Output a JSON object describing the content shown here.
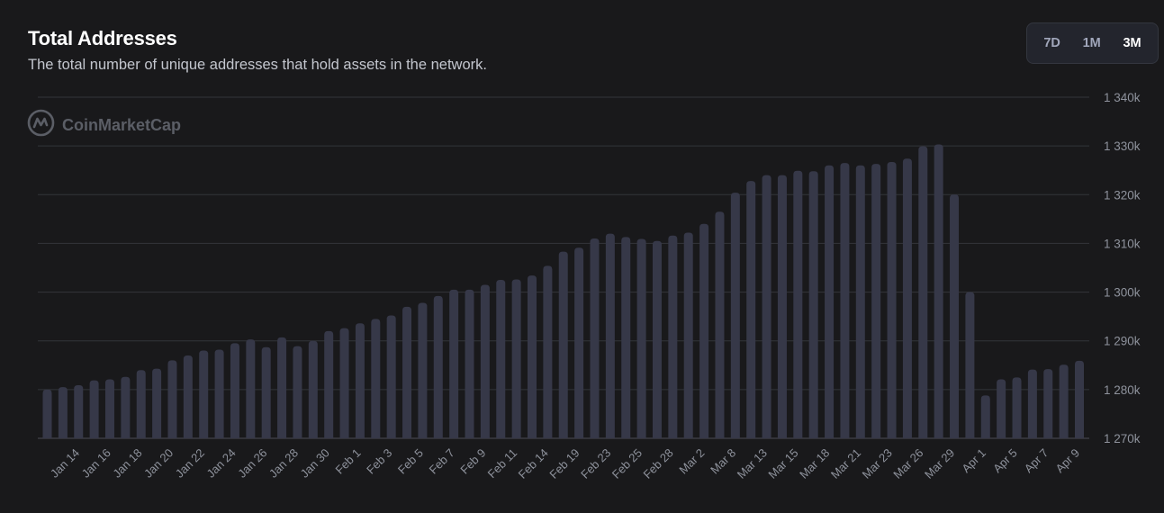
{
  "header": {
    "title": "Total Addresses",
    "subtitle": "The total number of unique addresses that hold assets in the network."
  },
  "range_buttons": [
    {
      "label": "7D",
      "active": false
    },
    {
      "label": "1M",
      "active": false
    },
    {
      "label": "3M",
      "active": true
    }
  ],
  "watermark": {
    "text": "CoinMarketCap",
    "icon": "coinmarketcap-logo-icon"
  },
  "colors": {
    "background": "#19191b",
    "bar": "#363848",
    "grid": "#33353b",
    "axis_text": "#8e929c"
  },
  "chart_data": {
    "type": "bar",
    "title": "Total Addresses",
    "subtitle": "The total number of unique addresses that hold assets in the network.",
    "xlabel": "",
    "ylabel": "",
    "y_axis_position": "right",
    "ylim": [
      1270000,
      1340000
    ],
    "yticks": [
      1270000,
      1280000,
      1290000,
      1300000,
      1310000,
      1320000,
      1330000,
      1340000
    ],
    "ytick_labels": [
      "1 270k",
      "1 280k",
      "1 290k",
      "1 300k",
      "1 310k",
      "1 320k",
      "1 330k",
      "1 340k"
    ],
    "xtick_labels": [
      "Jan 14",
      "Jan 16",
      "Jan 18",
      "Jan 20",
      "Jan 22",
      "Jan 24",
      "Jan 26",
      "Jan 28",
      "Jan 30",
      "Feb 1",
      "Feb 3",
      "Feb 5",
      "Feb 7",
      "Feb 9",
      "Feb 11",
      "Feb 14",
      "Feb 19",
      "Feb 23",
      "Feb 25",
      "Feb 28",
      "Mar 2",
      "Mar 8",
      "Mar 13",
      "Mar 15",
      "Mar 18",
      "Mar 21",
      "Mar 23",
      "Mar 26",
      "Mar 29",
      "Apr 1",
      "Apr 5",
      "Apr 7",
      "Apr 9"
    ],
    "grid": true,
    "legend": "none",
    "values": [
      1280000,
      1280500,
      1280900,
      1281900,
      1282100,
      1282600,
      1284000,
      1284300,
      1286000,
      1287000,
      1288000,
      1288200,
      1289500,
      1290300,
      1288700,
      1290700,
      1288900,
      1290000,
      1292000,
      1292600,
      1293600,
      1294500,
      1295200,
      1297000,
      1297800,
      1299200,
      1300500,
      1300500,
      1301500,
      1302500,
      1302600,
      1303400,
      1305400,
      1308300,
      1309100,
      1311000,
      1312000,
      1311300,
      1310900,
      1310500,
      1311600,
      1312200,
      1314000,
      1316500,
      1320400,
      1322800,
      1324000,
      1324000,
      1324900,
      1324800,
      1326000,
      1326500,
      1326000,
      1326300,
      1326700,
      1327400,
      1329900,
      1330300,
      1320000,
      1300000,
      1278800,
      1282100,
      1282500,
      1284100,
      1284200,
      1285100,
      1285900
    ]
  }
}
